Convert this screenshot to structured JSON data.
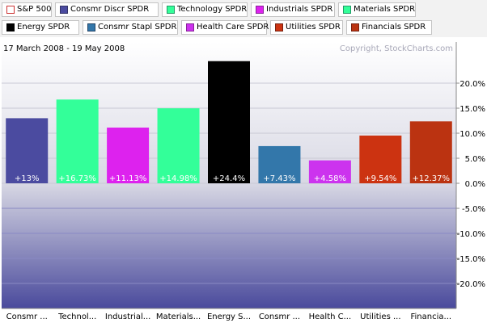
{
  "header": {
    "date_range": "17 March 2008 - 19 May 2008",
    "copyright": "Copyright, StockCharts.com"
  },
  "legend": [
    {
      "label": "S&P 500",
      "color": "#ffffff",
      "border": "#cc3333"
    },
    {
      "label": "Consmr Discr SPDR",
      "color": "#4b4ba0",
      "border": "#333366"
    },
    {
      "label": "Technology SPDR",
      "color": "#33ff99",
      "border": "#229966"
    },
    {
      "label": "Industrials SPDR",
      "color": "#dd22ee",
      "border": "#882299"
    },
    {
      "label": "Materials SPDR",
      "color": "#33ff99",
      "border": "#229966"
    },
    {
      "label": "Energy SPDR",
      "color": "#000000",
      "border": "#000000"
    },
    {
      "label": "Consmr Stapl SPDR",
      "color": "#3377aa",
      "border": "#224466"
    },
    {
      "label": "Health Care SPDR",
      "color": "#cc33ee",
      "border": "#882299"
    },
    {
      "label": "Utilities SPDR",
      "color": "#cc3311",
      "border": "#772211"
    },
    {
      "label": "Financials SPDR",
      "color": "#bb3311",
      "border": "#772211"
    }
  ],
  "chart_data": {
    "type": "bar",
    "categories": [
      "Consmr ...",
      "Technol...",
      "Industrial...",
      "Materials...",
      "Energy S...",
      "Consmr ...",
      "Health C...",
      "Utilities ...",
      "Financia..."
    ],
    "values": [
      13,
      16.73,
      11.13,
      14.98,
      24.4,
      7.43,
      4.58,
      9.54,
      12.37
    ],
    "data_labels": [
      "+13%",
      "+16.73%",
      "+11.13%",
      "+14.98%",
      "+24.4%",
      "+7.43%",
      "+4.58%",
      "+9.54%",
      "+12.37%"
    ],
    "colors": [
      "#4b4ba0",
      "#33ff99",
      "#dd22ee",
      "#33ff99",
      "#000000",
      "#3377aa",
      "#cc33ee",
      "#cc3311",
      "#bb3311"
    ],
    "ylim": [
      -25,
      25
    ],
    "yticks": [
      20,
      15,
      10,
      5,
      0,
      -5,
      -10,
      -15,
      -20
    ],
    "ytick_labels": [
      "20.0%",
      "15.0%",
      "10.0%",
      "5.0%",
      "0.0%",
      "-5.0%",
      "-10.0%",
      "-15.0%",
      "-20.0%"
    ],
    "grid": true,
    "background_colors": {
      "top": "#ffffff",
      "zero": "#d8d8e4",
      "bottom": "#4a4a9c"
    }
  }
}
